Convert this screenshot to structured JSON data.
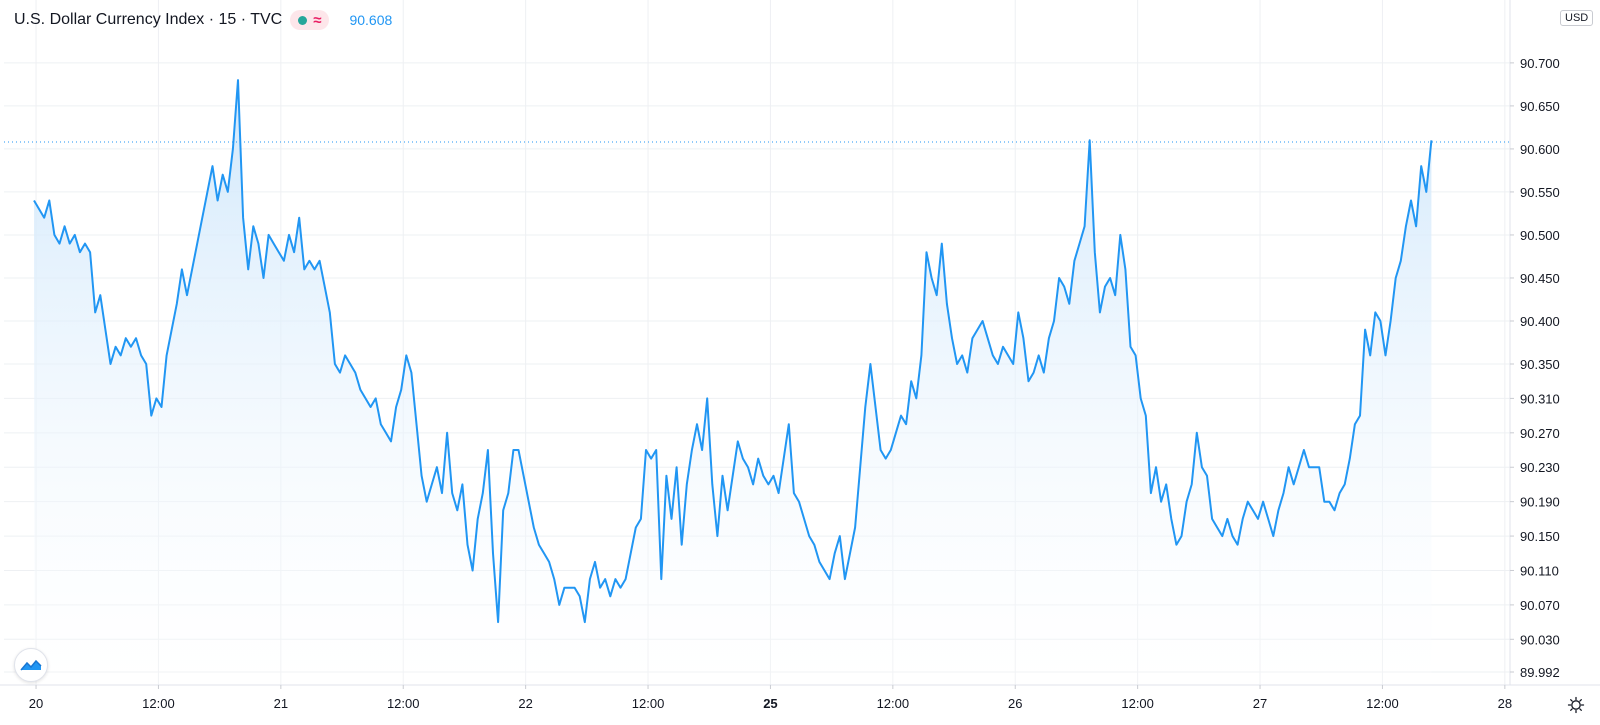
{
  "header": {
    "symbol": "U.S. Dollar Currency Index · 15 · TVC",
    "last_price": "90.608",
    "currency": "USD"
  },
  "colors": {
    "line": "#2196f3",
    "fill_top": "#cde6fb",
    "grid": "#eef0f3",
    "axis_text": "#131722",
    "price_line": "#2196f3"
  },
  "chart_data": {
    "type": "area",
    "title": "U.S. Dollar Currency Index · 15 · TVC",
    "xlabel": "",
    "ylabel": "",
    "ylim": [
      89.992,
      90.733
    ],
    "last_value": 90.608,
    "grid": true,
    "y_ticks": [
      "90.700",
      "90.650",
      "90.600",
      "90.550",
      "90.500",
      "90.450",
      "90.400",
      "90.350",
      "90.310",
      "90.270",
      "90.230",
      "90.190",
      "90.150",
      "90.110",
      "90.070",
      "90.030",
      "89.992"
    ],
    "x_ticks": [
      {
        "label": "20",
        "t": 0.4,
        "bold": false
      },
      {
        "label": "12:00",
        "t": 24.4,
        "bold": false
      },
      {
        "label": "21",
        "t": 48.4,
        "bold": false
      },
      {
        "label": "12:00",
        "t": 72.4,
        "bold": false
      },
      {
        "label": "22",
        "t": 96.4,
        "bold": false
      },
      {
        "label": "12:00",
        "t": 120.4,
        "bold": false
      },
      {
        "label": "25",
        "t": 144.4,
        "bold": true
      },
      {
        "label": "12:00",
        "t": 168.4,
        "bold": false
      },
      {
        "label": "26",
        "t": 192.4,
        "bold": false
      },
      {
        "label": "12:00",
        "t": 216.4,
        "bold": false
      },
      {
        "label": "27",
        "t": 240.4,
        "bold": false
      },
      {
        "label": "12:00",
        "t": 264.4,
        "bold": false
      },
      {
        "label": "28",
        "t": 288.4,
        "bold": false
      }
    ],
    "series": [
      {
        "values": [
          [
            0,
            90.54
          ],
          [
            2,
            90.52
          ],
          [
            3,
            90.54
          ],
          [
            4,
            90.5
          ],
          [
            5,
            90.49
          ],
          [
            6,
            90.51
          ],
          [
            7,
            90.49
          ],
          [
            8,
            90.5
          ],
          [
            9,
            90.48
          ],
          [
            10,
            90.49
          ],
          [
            11,
            90.48
          ],
          [
            12,
            90.41
          ],
          [
            13,
            90.43
          ],
          [
            14,
            90.39
          ],
          [
            15,
            90.35
          ],
          [
            16,
            90.37
          ],
          [
            17,
            90.36
          ],
          [
            18,
            90.38
          ],
          [
            19,
            90.37
          ],
          [
            20,
            90.38
          ],
          [
            21,
            90.36
          ],
          [
            22,
            90.35
          ],
          [
            23,
            90.29
          ],
          [
            24,
            90.31
          ],
          [
            25,
            90.3
          ],
          [
            26,
            90.36
          ],
          [
            27,
            90.39
          ],
          [
            28,
            90.42
          ],
          [
            29,
            90.46
          ],
          [
            30,
            90.43
          ],
          [
            31,
            90.46
          ],
          [
            32,
            90.49
          ],
          [
            33,
            90.52
          ],
          [
            34,
            90.55
          ],
          [
            35,
            90.58
          ],
          [
            36,
            90.54
          ],
          [
            37,
            90.57
          ],
          [
            38,
            90.55
          ],
          [
            39,
            90.6
          ],
          [
            40,
            90.68
          ],
          [
            41,
            90.52
          ],
          [
            42,
            90.46
          ],
          [
            43,
            90.51
          ],
          [
            44,
            90.49
          ],
          [
            45,
            90.45
          ],
          [
            46,
            90.5
          ],
          [
            47,
            90.49
          ],
          [
            48,
            90.48
          ],
          [
            49,
            90.47
          ],
          [
            50,
            90.5
          ],
          [
            51,
            90.48
          ],
          [
            52,
            90.52
          ],
          [
            53,
            90.46
          ],
          [
            54,
            90.47
          ],
          [
            55,
            90.46
          ],
          [
            56,
            90.47
          ],
          [
            57,
            90.44
          ],
          [
            58,
            90.41
          ],
          [
            59,
            90.35
          ],
          [
            60,
            90.34
          ],
          [
            61,
            90.36
          ],
          [
            62,
            90.35
          ],
          [
            63,
            90.34
          ],
          [
            64,
            90.32
          ],
          [
            65,
            90.31
          ],
          [
            66,
            90.3
          ],
          [
            67,
            90.31
          ],
          [
            68,
            90.28
          ],
          [
            69,
            90.27
          ],
          [
            70,
            90.26
          ],
          [
            71,
            90.3
          ],
          [
            72,
            90.32
          ],
          [
            73,
            90.36
          ],
          [
            74,
            90.34
          ],
          [
            75,
            90.28
          ],
          [
            76,
            90.22
          ],
          [
            77,
            90.19
          ],
          [
            78,
            90.21
          ],
          [
            79,
            90.23
          ],
          [
            80,
            90.2
          ],
          [
            81,
            90.27
          ],
          [
            82,
            90.2
          ],
          [
            83,
            90.18
          ],
          [
            84,
            90.21
          ],
          [
            85,
            90.14
          ],
          [
            86,
            90.11
          ],
          [
            87,
            90.17
          ],
          [
            88,
            90.2
          ],
          [
            89,
            90.25
          ],
          [
            90,
            90.13
          ],
          [
            91,
            90.05
          ],
          [
            92,
            90.18
          ],
          [
            93,
            90.2
          ],
          [
            94,
            90.25
          ],
          [
            95,
            90.25
          ],
          [
            96,
            90.22
          ],
          [
            97,
            90.19
          ],
          [
            98,
            90.16
          ],
          [
            99,
            90.14
          ],
          [
            100,
            90.13
          ],
          [
            101,
            90.12
          ],
          [
            102,
            90.1
          ],
          [
            103,
            90.07
          ],
          [
            104,
            90.09
          ],
          [
            105,
            90.09
          ],
          [
            106,
            90.09
          ],
          [
            107,
            90.08
          ],
          [
            108,
            90.05
          ],
          [
            109,
            90.1
          ],
          [
            110,
            90.12
          ],
          [
            111,
            90.09
          ],
          [
            112,
            90.1
          ],
          [
            113,
            90.08
          ],
          [
            114,
            90.1
          ],
          [
            115,
            90.09
          ],
          [
            116,
            90.1
          ],
          [
            117,
            90.13
          ],
          [
            118,
            90.16
          ],
          [
            119,
            90.17
          ],
          [
            120,
            90.25
          ],
          [
            121,
            90.24
          ],
          [
            122,
            90.25
          ],
          [
            123,
            90.1
          ],
          [
            124,
            90.22
          ],
          [
            125,
            90.17
          ],
          [
            126,
            90.23
          ],
          [
            127,
            90.14
          ],
          [
            128,
            90.21
          ],
          [
            129,
            90.25
          ],
          [
            130,
            90.28
          ],
          [
            131,
            90.25
          ],
          [
            132,
            90.31
          ],
          [
            133,
            90.21
          ],
          [
            134,
            90.15
          ],
          [
            135,
            90.22
          ],
          [
            136,
            90.18
          ],
          [
            137,
            90.22
          ],
          [
            138,
            90.26
          ],
          [
            139,
            90.24
          ],
          [
            140,
            90.23
          ],
          [
            141,
            90.21
          ],
          [
            142,
            90.24
          ],
          [
            143,
            90.22
          ],
          [
            144,
            90.21
          ],
          [
            145,
            90.22
          ],
          [
            146,
            90.2
          ],
          [
            147,
            90.24
          ],
          [
            148,
            90.28
          ],
          [
            149,
            90.2
          ],
          [
            150,
            90.19
          ],
          [
            151,
            90.17
          ],
          [
            152,
            90.15
          ],
          [
            153,
            90.14
          ],
          [
            154,
            90.12
          ],
          [
            155,
            90.11
          ],
          [
            156,
            90.1
          ],
          [
            157,
            90.13
          ],
          [
            158,
            90.15
          ],
          [
            159,
            90.1
          ],
          [
            160,
            90.13
          ],
          [
            161,
            90.16
          ],
          [
            162,
            90.23
          ],
          [
            163,
            90.3
          ],
          [
            164,
            90.35
          ],
          [
            165,
            90.3
          ],
          [
            166,
            90.25
          ],
          [
            167,
            90.24
          ],
          [
            168,
            90.25
          ],
          [
            169,
            90.27
          ],
          [
            170,
            90.29
          ],
          [
            171,
            90.28
          ],
          [
            172,
            90.33
          ],
          [
            173,
            90.31
          ],
          [
            174,
            90.36
          ],
          [
            175,
            90.48
          ],
          [
            176,
            90.45
          ],
          [
            177,
            90.43
          ],
          [
            178,
            90.49
          ],
          [
            179,
            90.42
          ],
          [
            180,
            90.38
          ],
          [
            181,
            90.35
          ],
          [
            182,
            90.36
          ],
          [
            183,
            90.34
          ],
          [
            184,
            90.38
          ],
          [
            185,
            90.39
          ],
          [
            186,
            90.4
          ],
          [
            187,
            90.38
          ],
          [
            188,
            90.36
          ],
          [
            189,
            90.35
          ],
          [
            190,
            90.37
          ],
          [
            191,
            90.36
          ],
          [
            192,
            90.35
          ],
          [
            193,
            90.41
          ],
          [
            194,
            90.38
          ],
          [
            195,
            90.33
          ],
          [
            196,
            90.34
          ],
          [
            197,
            90.36
          ],
          [
            198,
            90.34
          ],
          [
            199,
            90.38
          ],
          [
            200,
            90.4
          ],
          [
            201,
            90.45
          ],
          [
            202,
            90.44
          ],
          [
            203,
            90.42
          ],
          [
            204,
            90.47
          ],
          [
            205,
            90.49
          ],
          [
            206,
            90.51
          ],
          [
            207,
            90.61
          ],
          [
            208,
            90.48
          ],
          [
            209,
            90.41
          ],
          [
            210,
            90.44
          ],
          [
            211,
            90.45
          ],
          [
            212,
            90.43
          ],
          [
            213,
            90.5
          ],
          [
            214,
            90.46
          ],
          [
            215,
            90.37
          ],
          [
            216,
            90.36
          ],
          [
            217,
            90.31
          ],
          [
            218,
            90.29
          ],
          [
            219,
            90.2
          ],
          [
            220,
            90.23
          ],
          [
            221,
            90.19
          ],
          [
            222,
            90.21
          ],
          [
            223,
            90.17
          ],
          [
            224,
            90.14
          ],
          [
            225,
            90.15
          ],
          [
            226,
            90.19
          ],
          [
            227,
            90.21
          ],
          [
            228,
            90.27
          ],
          [
            229,
            90.23
          ],
          [
            230,
            90.22
          ],
          [
            231,
            90.17
          ],
          [
            232,
            90.16
          ],
          [
            233,
            90.15
          ],
          [
            234,
            90.17
          ],
          [
            235,
            90.15
          ],
          [
            236,
            90.14
          ],
          [
            237,
            90.17
          ],
          [
            238,
            90.19
          ],
          [
            239,
            90.18
          ],
          [
            240,
            90.17
          ],
          [
            241,
            90.19
          ],
          [
            242,
            90.17
          ],
          [
            243,
            90.15
          ],
          [
            244,
            90.18
          ],
          [
            245,
            90.2
          ],
          [
            246,
            90.23
          ],
          [
            247,
            90.21
          ],
          [
            248,
            90.23
          ],
          [
            249,
            90.25
          ],
          [
            250,
            90.23
          ],
          [
            251,
            90.23
          ],
          [
            252,
            90.23
          ],
          [
            253,
            90.19
          ],
          [
            254,
            90.19
          ],
          [
            255,
            90.18
          ],
          [
            256,
            90.2
          ],
          [
            257,
            90.21
          ],
          [
            258,
            90.24
          ],
          [
            259,
            90.28
          ],
          [
            260,
            90.29
          ],
          [
            261,
            90.39
          ],
          [
            262,
            90.36
          ],
          [
            263,
            90.41
          ],
          [
            264,
            90.4
          ],
          [
            265,
            90.36
          ],
          [
            266,
            90.4
          ],
          [
            267,
            90.45
          ],
          [
            268,
            90.47
          ],
          [
            269,
            90.51
          ],
          [
            270,
            90.54
          ],
          [
            271,
            90.51
          ],
          [
            272,
            90.58
          ],
          [
            273,
            90.55
          ],
          [
            274,
            90.61
          ]
        ]
      }
    ]
  }
}
